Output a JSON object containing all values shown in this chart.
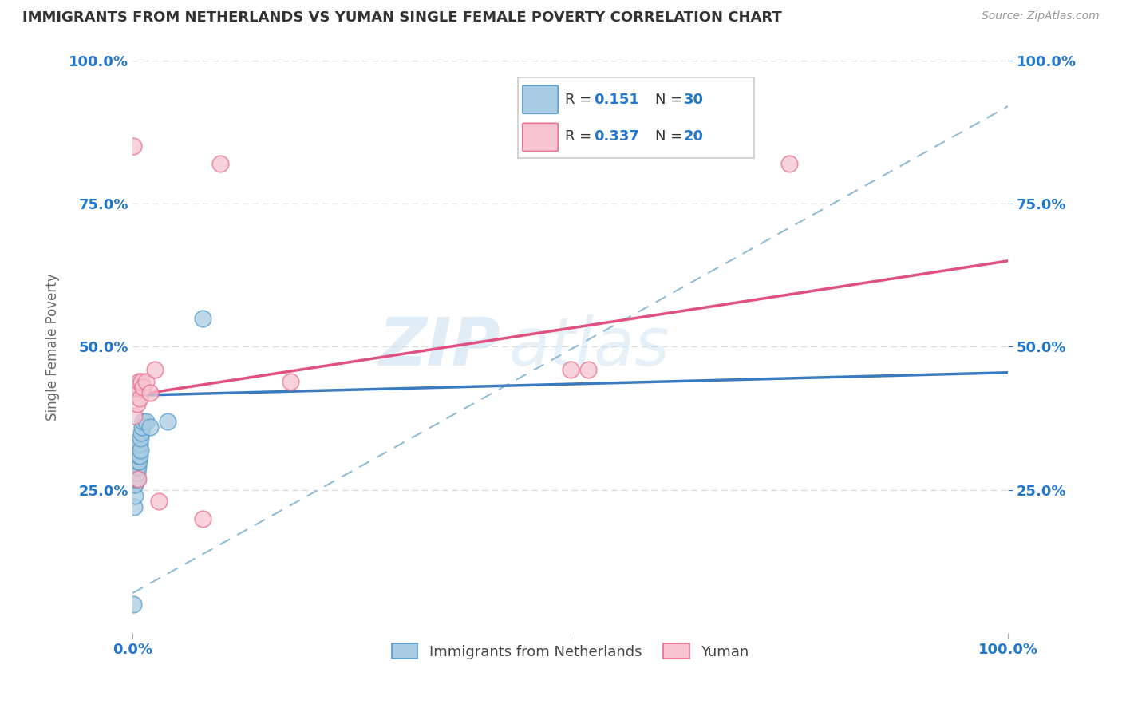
{
  "title": "IMMIGRANTS FROM NETHERLANDS VS YUMAN SINGLE FEMALE POVERTY CORRELATION CHART",
  "source": "Source: ZipAtlas.com",
  "ylabel": "Single Female Poverty",
  "legend_label1": "Immigrants from Netherlands",
  "legend_label2": "Yuman",
  "R1": "0.151",
  "N1": "30",
  "R2": "0.337",
  "N2": "20",
  "color_blue_fill": "#a8cce4",
  "color_blue_edge": "#5b9dc9",
  "color_blue_line": "#3a7bbf",
  "color_pink_fill": "#f7c5d0",
  "color_pink_edge": "#e87090",
  "color_pink_line": "#e05080",
  "color_dashed": "#90bcd8",
  "color_axis_label": "#2277cc",
  "color_title": "#333333",
  "color_grid": "#d8d8d8",
  "background_color": "#ffffff",
  "watermark": "ZIPAtlas",
  "blue_x": [
    0.001,
    0.002,
    0.002,
    0.003,
    0.003,
    0.003,
    0.004,
    0.004,
    0.004,
    0.005,
    0.005,
    0.005,
    0.005,
    0.006,
    0.006,
    0.006,
    0.007,
    0.007,
    0.007,
    0.008,
    0.008,
    0.009,
    0.009,
    0.01,
    0.011,
    0.012,
    0.015,
    0.02,
    0.04,
    0.08
  ],
  "blue_y": [
    0.05,
    0.22,
    0.26,
    0.24,
    0.26,
    0.27,
    0.27,
    0.28,
    0.29,
    0.27,
    0.28,
    0.29,
    0.3,
    0.29,
    0.3,
    0.31,
    0.3,
    0.31,
    0.32,
    0.31,
    0.33,
    0.32,
    0.34,
    0.35,
    0.36,
    0.37,
    0.37,
    0.36,
    0.37,
    0.55
  ],
  "pink_x": [
    0.001,
    0.002,
    0.003,
    0.004,
    0.005,
    0.006,
    0.007,
    0.008,
    0.01,
    0.012,
    0.015,
    0.02,
    0.025,
    0.03,
    0.08,
    0.1,
    0.18,
    0.5,
    0.52,
    0.75
  ],
  "pink_y": [
    0.85,
    0.38,
    0.42,
    0.43,
    0.4,
    0.27,
    0.44,
    0.41,
    0.44,
    0.43,
    0.44,
    0.42,
    0.46,
    0.23,
    0.2,
    0.82,
    0.44,
    0.46,
    0.46,
    0.82
  ],
  "blue_line_x0": 0.0,
  "blue_line_y0": 0.415,
  "blue_line_x1": 1.0,
  "blue_line_y1": 0.455,
  "pink_line_x0": 0.0,
  "pink_line_y0": 0.415,
  "pink_line_x1": 1.0,
  "pink_line_y1": 0.65,
  "xlim": [
    0.0,
    1.0
  ],
  "ylim": [
    0.0,
    1.0
  ],
  "xticks": [
    0.0,
    1.0
  ],
  "yticks": [
    0.25,
    0.5,
    0.75,
    1.0
  ],
  "xticklabels": [
    "0.0%",
    "100.0%"
  ],
  "yticklabels_left": [
    "25.0%",
    "50.0%",
    "75.0%",
    "100.0%"
  ],
  "yticklabels_right": [
    "25.0%",
    "50.0%",
    "75.0%",
    "100.0%"
  ]
}
